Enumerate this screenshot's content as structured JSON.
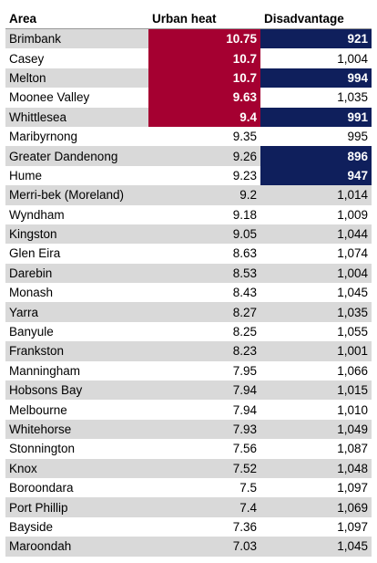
{
  "colors": {
    "shade": "#d9d9d9",
    "heat_highlight": "#a50031",
    "disadvantage_highlight": "#0f1f5c"
  },
  "headers": [
    "Area",
    "Urban heat",
    "Disadvantage"
  ],
  "rows": [
    {
      "area": "Brimbank",
      "heat": "10.75",
      "disadvantage": "921",
      "heat_hl": true,
      "dis_hl": true
    },
    {
      "area": "Casey",
      "heat": "10.7",
      "disadvantage": "1,004",
      "heat_hl": true,
      "dis_hl": false
    },
    {
      "area": "Melton",
      "heat": "10.7",
      "disadvantage": "994",
      "heat_hl": true,
      "dis_hl": true
    },
    {
      "area": "Moonee Valley",
      "heat": "9.63",
      "disadvantage": "1,035",
      "heat_hl": true,
      "dis_hl": false
    },
    {
      "area": "Whittlesea",
      "heat": "9.4",
      "disadvantage": "991",
      "heat_hl": true,
      "dis_hl": true
    },
    {
      "area": "Maribyrnong",
      "heat": "9.35",
      "disadvantage": "995",
      "heat_hl": false,
      "dis_hl": false
    },
    {
      "area": "Greater Dandenong",
      "heat": "9.26",
      "disadvantage": "896",
      "heat_hl": false,
      "dis_hl": true
    },
    {
      "area": "Hume",
      "heat": "9.23",
      "disadvantage": "947",
      "heat_hl": false,
      "dis_hl": true
    },
    {
      "area": "Merri-bek (Moreland)",
      "heat": "9.2",
      "disadvantage": "1,014",
      "heat_hl": false,
      "dis_hl": false
    },
    {
      "area": "Wyndham",
      "heat": "9.18",
      "disadvantage": "1,009",
      "heat_hl": false,
      "dis_hl": false
    },
    {
      "area": "Kingston",
      "heat": "9.05",
      "disadvantage": "1,044",
      "heat_hl": false,
      "dis_hl": false
    },
    {
      "area": "Glen Eira",
      "heat": "8.63",
      "disadvantage": "1,074",
      "heat_hl": false,
      "dis_hl": false
    },
    {
      "area": "Darebin",
      "heat": "8.53",
      "disadvantage": "1,004",
      "heat_hl": false,
      "dis_hl": false
    },
    {
      "area": "Monash",
      "heat": "8.43",
      "disadvantage": "1,045",
      "heat_hl": false,
      "dis_hl": false
    },
    {
      "area": "Yarra",
      "heat": "8.27",
      "disadvantage": "1,035",
      "heat_hl": false,
      "dis_hl": false
    },
    {
      "area": "Banyule",
      "heat": "8.25",
      "disadvantage": "1,055",
      "heat_hl": false,
      "dis_hl": false
    },
    {
      "area": "Frankston",
      "heat": "8.23",
      "disadvantage": "1,001",
      "heat_hl": false,
      "dis_hl": false
    },
    {
      "area": "Manningham",
      "heat": "7.95",
      "disadvantage": "1,066",
      "heat_hl": false,
      "dis_hl": false
    },
    {
      "area": "Hobsons Bay",
      "heat": "7.94",
      "disadvantage": "1,015",
      "heat_hl": false,
      "dis_hl": false
    },
    {
      "area": "Melbourne",
      "heat": "7.94",
      "disadvantage": "1,010",
      "heat_hl": false,
      "dis_hl": false
    },
    {
      "area": "Whitehorse",
      "heat": "7.93",
      "disadvantage": "1,049",
      "heat_hl": false,
      "dis_hl": false
    },
    {
      "area": "Stonnington",
      "heat": "7.56",
      "disadvantage": "1,087",
      "heat_hl": false,
      "dis_hl": false
    },
    {
      "area": "Knox",
      "heat": "7.52",
      "disadvantage": "1,048",
      "heat_hl": false,
      "dis_hl": false
    },
    {
      "area": "Boroondara",
      "heat": "7.5",
      "disadvantage": "1,097",
      "heat_hl": false,
      "dis_hl": false
    },
    {
      "area": "Port Phillip",
      "heat": "7.4",
      "disadvantage": "1,069",
      "heat_hl": false,
      "dis_hl": false
    },
    {
      "area": "Bayside",
      "heat": "7.36",
      "disadvantage": "1,097",
      "heat_hl": false,
      "dis_hl": false
    },
    {
      "area": "Maroondah",
      "heat": "7.03",
      "disadvantage": "1,045",
      "heat_hl": false,
      "dis_hl": false
    }
  ]
}
